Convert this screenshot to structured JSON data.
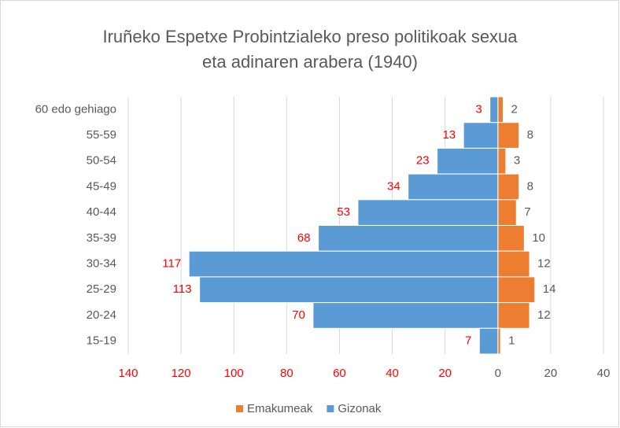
{
  "chart_data": {
    "type": "pyramid",
    "title": [
      "Iruñeko Espetxe Probintzialeko preso politikoak sexua",
      "eta adinaren arabera (1940)"
    ],
    "categories": [
      "60 edo gehiago",
      "55-59",
      "50-54",
      "45-49",
      "40-44",
      "35-39",
      "30-34",
      "25-29",
      "20-24",
      "15-19"
    ],
    "series": [
      {
        "name": "Emakumeak",
        "color": "#ed7d31",
        "label_color": "#595959",
        "values": [
          2,
          8,
          3,
          8,
          7,
          10,
          12,
          14,
          12,
          1
        ]
      },
      {
        "name": "Gizonak",
        "color": "#5b9bd5",
        "label_color": "#ff0000",
        "values": [
          -3,
          -13,
          -23,
          -34,
          -53,
          -68,
          -117,
          -113,
          -70,
          -7
        ],
        "value_labels": [
          "3",
          "13",
          "23",
          "34",
          "53",
          "68",
          "117",
          "113",
          "70",
          "7"
        ]
      }
    ],
    "xlim": [
      -140,
      40
    ],
    "xticks": [
      {
        "value": -140,
        "label": "140"
      },
      {
        "value": -120,
        "label": "120"
      },
      {
        "value": -100,
        "label": "100"
      },
      {
        "value": -80,
        "label": "80"
      },
      {
        "value": -60,
        "label": "60"
      },
      {
        "value": -40,
        "label": "40"
      },
      {
        "value": -20,
        "label": "20"
      },
      0,
      20,
      40
    ],
    "grid": true,
    "legend": "bottom"
  }
}
